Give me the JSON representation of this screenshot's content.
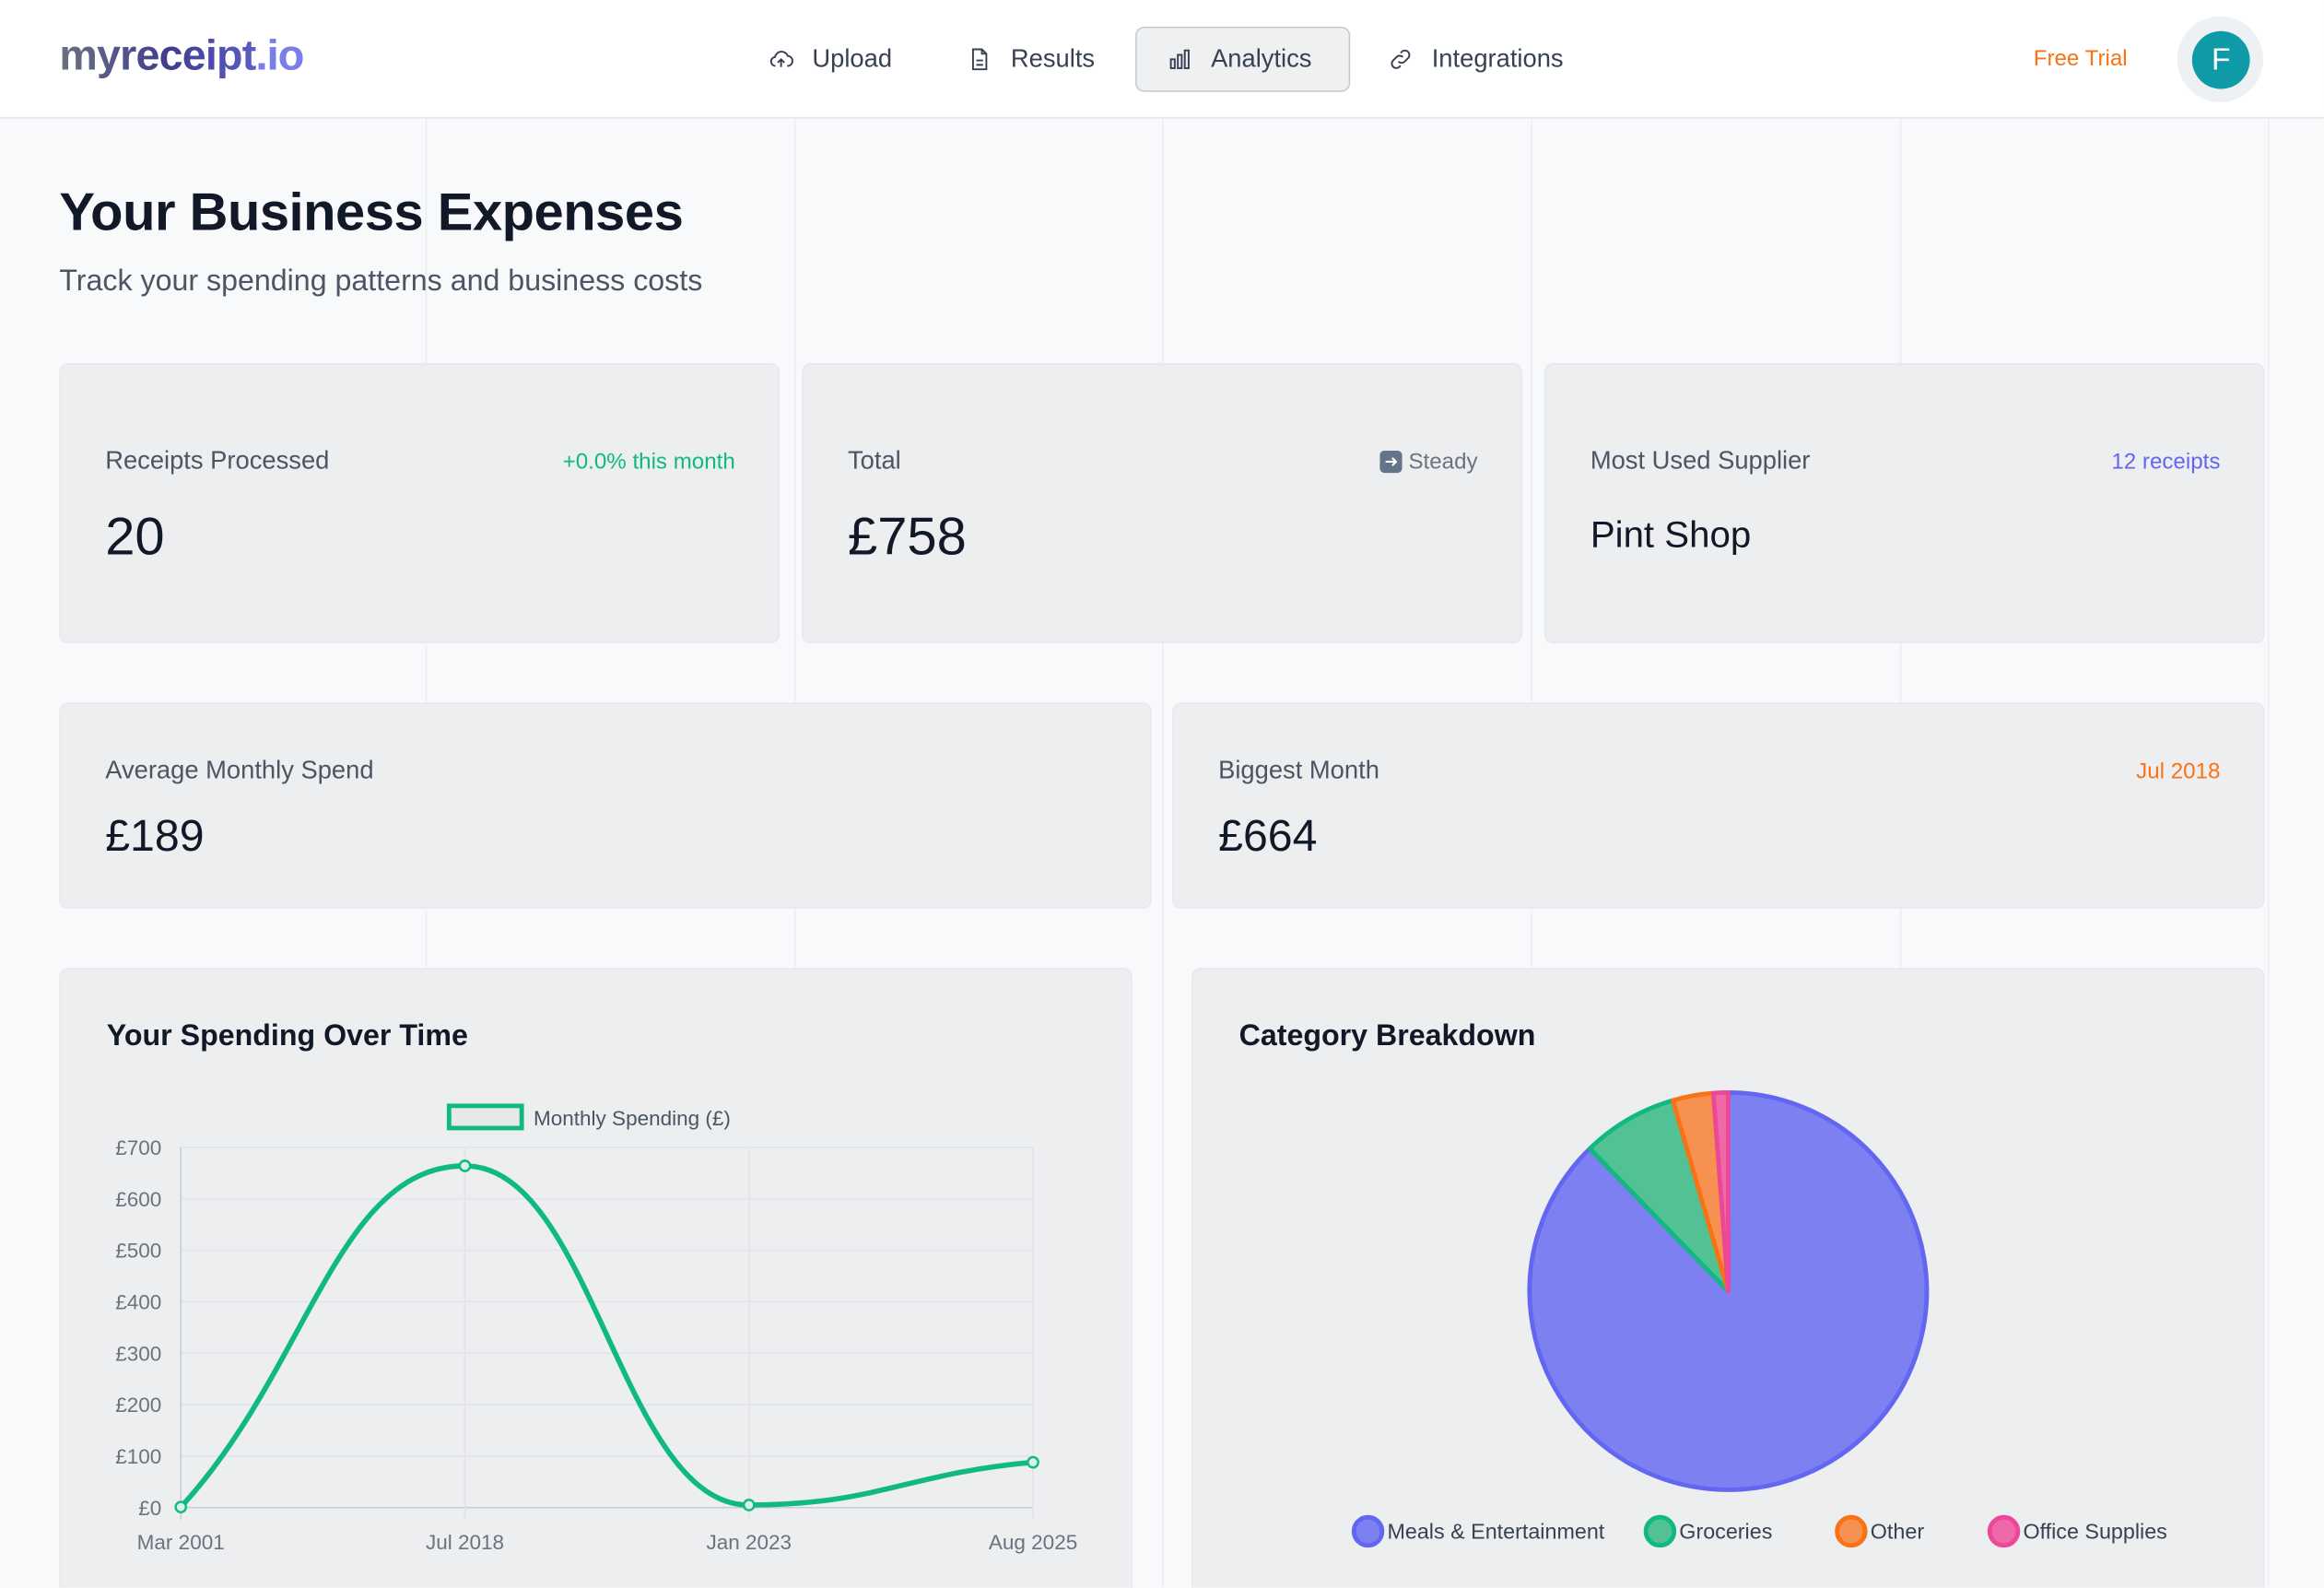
{
  "header": {
    "logo_main": "myreceipt",
    "logo_tld": ".io",
    "nav": [
      {
        "label": "Upload",
        "icon": "cloud-upload-icon"
      },
      {
        "label": "Results",
        "icon": "document-icon"
      },
      {
        "label": "Analytics",
        "icon": "bar-chart-icon",
        "active": true
      },
      {
        "label": "Integrations",
        "icon": "link-icon"
      }
    ],
    "free_trial": "Free Trial",
    "avatar_initial": "F"
  },
  "page": {
    "title": "Your Business Expenses",
    "subtitle": "Track your spending patterns and business costs"
  },
  "stats": [
    {
      "label": "Receipts Processed",
      "value": "20",
      "badge": "+0.0% this month",
      "badge_color": "#10b981"
    },
    {
      "label": "Total",
      "value": "£758",
      "badge": "Steady",
      "badge_icon": "right-arrow-icon",
      "badge_color": "#6b7280"
    },
    {
      "label": "Most Used Supplier",
      "value": "Pint Shop",
      "badge": "12 receipts",
      "badge_color": "#6366f1"
    },
    {
      "label": "Average Monthly Spend",
      "value": "£189"
    },
    {
      "label": "Biggest Month",
      "value": "£664",
      "badge": "Jul 2018",
      "badge_color": "#f97316"
    }
  ],
  "chart_data": [
    {
      "type": "line",
      "title": "Your Spending Over Time",
      "legend": "Monthly Spending (£)",
      "legend_position": "top",
      "categories": [
        "Mar 2001",
        "Jul 2018",
        "Jan 2023",
        "Aug 2025"
      ],
      "values": [
        1,
        664,
        5,
        88
      ],
      "ylim": [
        0,
        700
      ],
      "yticks": [
        "£0",
        "£100",
        "£200",
        "£300",
        "£400",
        "£500",
        "£600",
        "£700"
      ],
      "ytick_values": [
        0,
        100,
        200,
        300,
        400,
        500,
        600,
        700
      ],
      "color": "#10b981",
      "grid": true
    },
    {
      "type": "pie",
      "title": "Category Breakdown",
      "legend_position": "bottom",
      "labels": [
        "Meals & Entertainment",
        "Groceries",
        "Other",
        "Office Supplies"
      ],
      "values": [
        665,
        59,
        25,
        9
      ],
      "colors": [
        "#6366f1",
        "#10b981",
        "#f97316",
        "#ec4899"
      ],
      "fills": [
        "#7d80f0",
        "#52c295",
        "#f79152",
        "#ef68a8"
      ]
    }
  ]
}
